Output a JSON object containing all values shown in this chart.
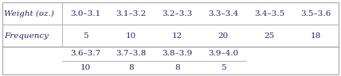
{
  "row1_label": "Weight (oz.)",
  "row1_cols": [
    "3.0–3.1",
    "3.1–3.2",
    "3.2–3.3",
    "3.3–3.4",
    "3.4–3.5",
    "3.5–3.6"
  ],
  "row2_label": "Frequency",
  "row2_cols": [
    "5",
    "10",
    "12",
    "20",
    "25",
    "18"
  ],
  "row3_cols": [
    "3.6–3.7",
    "3.7–3.8",
    "3.8–3.9",
    "3.9–4.0"
  ],
  "row4_cols": [
    "10",
    "8",
    "8",
    "5"
  ],
  "bg_color": "#ffffff",
  "text_color": "#2b2b6b",
  "border_color": "#aaaaaa",
  "font_size": 7.5,
  "fig_width": 4.28,
  "fig_height": 0.96
}
